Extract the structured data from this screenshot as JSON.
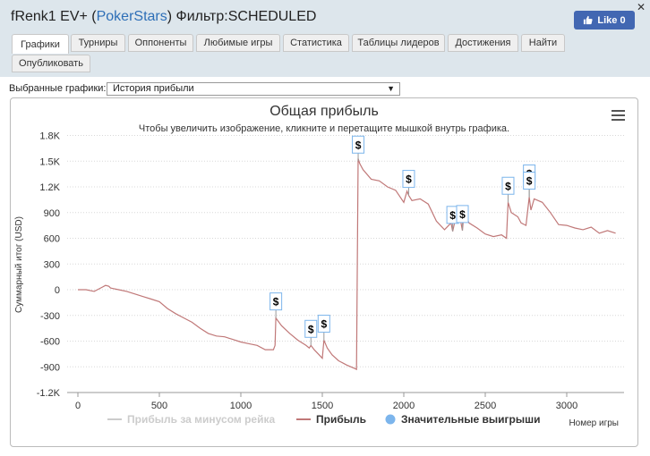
{
  "header": {
    "player": "fRenk1 EV+",
    "paren_open": "(",
    "site": "PokerStars",
    "paren_close": ")",
    "filter_label": "Фильтр:",
    "filter_value": "SCHEDULED",
    "close_glyph": "✕",
    "like_label": "Like 0"
  },
  "tabs": [
    {
      "label": "Графики",
      "active": true
    },
    {
      "label": "Турниры"
    },
    {
      "label": "Оппоненты"
    },
    {
      "label": "Любимые игры"
    },
    {
      "label": "Статистика"
    },
    {
      "label": "Таблицы лидеров"
    },
    {
      "label": "Достижения"
    },
    {
      "label": "Найти"
    },
    {
      "label": "Опубликовать"
    }
  ],
  "selector": {
    "label": "Выбранные графики:",
    "value": "История прибыли",
    "arrow": "▼"
  },
  "chart_data": {
    "type": "line",
    "title": "Общая прибыль",
    "subtitle": "Чтобы увеличить изображение, кликните и перетащите мышкой внутрь графика.",
    "xlabel": "Номер игры",
    "ylabel": "Суммарный итог (USD)",
    "xlim": [
      -50,
      3320
    ],
    "ylim": [
      -1200,
      1800
    ],
    "x_ticks": [
      "0",
      "500",
      "1000",
      "1500",
      "2000",
      "2500",
      "3000"
    ],
    "y_ticks": [
      "-1.2K",
      "-900",
      "-600",
      "-300",
      "0",
      "300",
      "600",
      "900",
      "1.2K",
      "1.5K",
      "1.8K"
    ],
    "grid": true,
    "series": [
      {
        "name": "Прибыль за минусом рейка",
        "color": "#cccccc",
        "visible": false
      },
      {
        "name": "Прибыль",
        "color": "#c07878",
        "x": [
          0,
          50,
          100,
          150,
          170,
          190,
          200,
          250,
          300,
          350,
          400,
          450,
          500,
          550,
          600,
          650,
          700,
          750,
          800,
          850,
          900,
          950,
          1000,
          1050,
          1100,
          1150,
          1200,
          1210,
          1215,
          1250,
          1300,
          1350,
          1400,
          1420,
          1430,
          1450,
          1480,
          1500,
          1510,
          1530,
          1560,
          1600,
          1650,
          1700,
          1710,
          1720,
          1730,
          1750,
          1800,
          1850,
          1900,
          1950,
          2000,
          2020,
          2030,
          2050,
          2100,
          2150,
          2200,
          2250,
          2290,
          2300,
          2320,
          2350,
          2360,
          2370,
          2400,
          2450,
          2500,
          2550,
          2600,
          2630,
          2640,
          2660,
          2700,
          2720,
          2750,
          2770,
          2780,
          2800,
          2850,
          2900,
          2950,
          3000,
          3050,
          3100,
          3150,
          3200,
          3250,
          3300
        ],
        "y": [
          0,
          0,
          -20,
          30,
          50,
          40,
          20,
          0,
          -20,
          -50,
          -80,
          -110,
          -140,
          -220,
          -280,
          -330,
          -380,
          -450,
          -510,
          -540,
          -550,
          -580,
          -610,
          -630,
          -650,
          -700,
          -700,
          -650,
          -330,
          -420,
          -510,
          -590,
          -650,
          -680,
          -650,
          -700,
          -760,
          -800,
          -590,
          -680,
          -760,
          -830,
          -880,
          -920,
          -930,
          1530,
          1470,
          1400,
          1290,
          1270,
          1200,
          1160,
          1020,
          1150,
          1100,
          1040,
          1060,
          1000,
          800,
          700,
          780,
          680,
          850,
          790,
          690,
          920,
          780,
          720,
          650,
          620,
          640,
          600,
          1020,
          900,
          850,
          780,
          750,
          1080,
          930,
          1060,
          1020,
          900,
          760,
          750,
          720,
          700,
          730,
          660,
          690,
          660
        ]
      },
      {
        "name": "Значительные выигрыши",
        "color": "#7cb5ec"
      }
    ],
    "big_wins_x": [
      1215,
      1430,
      1510,
      1720,
      2030,
      2300,
      2360,
      2640,
      2770,
      2770
    ],
    "marker_label": "$"
  }
}
